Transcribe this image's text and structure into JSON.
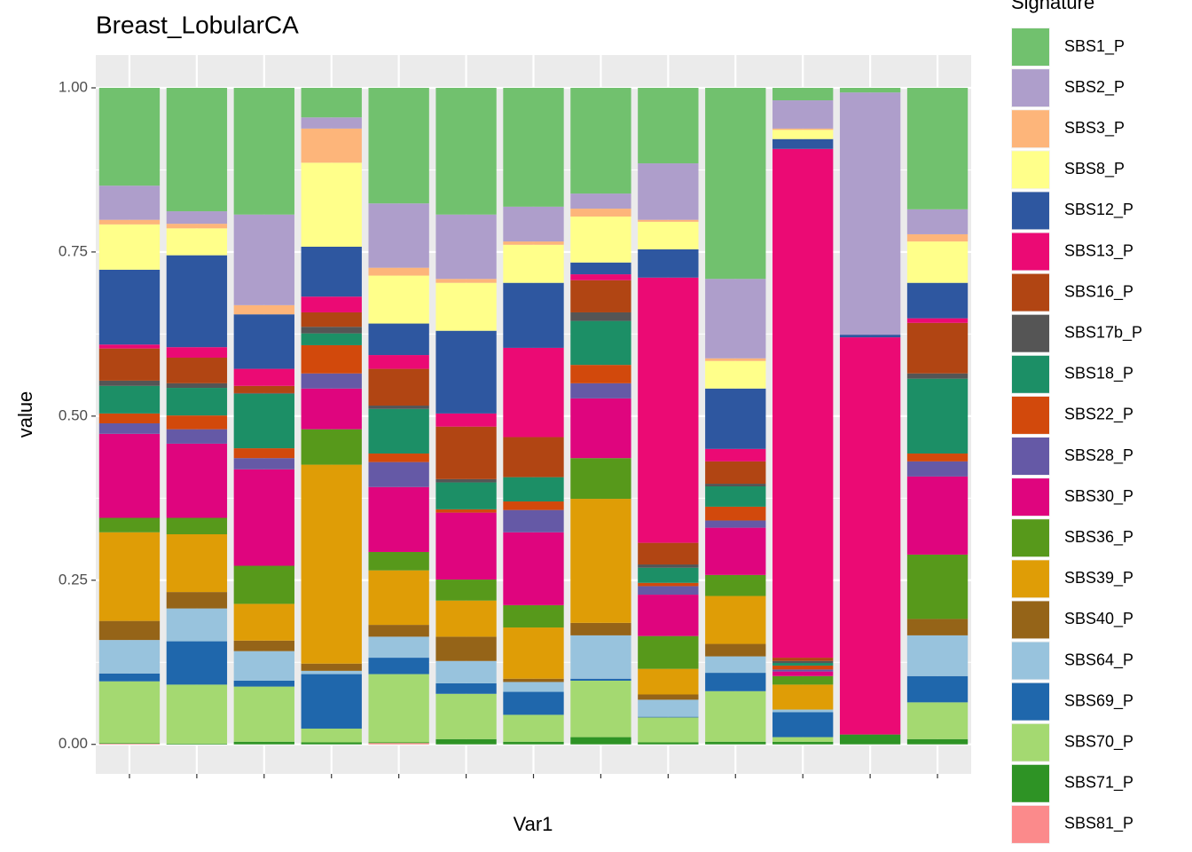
{
  "chart_data": {
    "type": "stacked_bar",
    "title": "Breast_LobularCA",
    "x_label": "Var1",
    "y_label": "value",
    "legend_title": "Signature",
    "legend_position": "right",
    "grid": true,
    "categories": [
      null,
      null,
      null,
      null,
      null,
      null,
      null,
      null,
      null,
      null,
      null,
      null,
      null
    ],
    "ylim": [
      -0.045,
      1.05
    ],
    "yticks": [
      {
        "value": 0,
        "label": "0.00"
      },
      {
        "value": 0.25,
        "label": "0.25"
      },
      {
        "value": 0.5,
        "label": "0.50"
      },
      {
        "value": 0.75,
        "label": "0.75"
      },
      {
        "value": 1,
        "label": "1.00"
      }
    ],
    "series": [
      {
        "name": "SBS1_P",
        "color": "#71C16E",
        "values": [
          0.149,
          0.188,
          0.193,
          0.045,
          0.176,
          0.193,
          0.181,
          0.161,
          0.115,
          0.291,
          0.019,
          0.007,
          0.185
        ]
      },
      {
        "name": "SBS2_P",
        "color": "#AE9ECB",
        "values": [
          0.052,
          0.019,
          0.138,
          0.017,
          0.098,
          0.098,
          0.053,
          0.023,
          0.086,
          0.121,
          0.043,
          0.369,
          0.038
        ]
      },
      {
        "name": "SBS3_P",
        "color": "#FDB57A",
        "values": [
          0.007,
          0.007,
          0.014,
          0.052,
          0.012,
          0.006,
          0.005,
          0.012,
          0.003,
          0.004,
          0.002,
          0,
          0.011
        ]
      },
      {
        "name": "SBS8_P",
        "color": "#FFFF8A",
        "values": [
          0.069,
          0.041,
          0,
          0.128,
          0.073,
          0.073,
          0.058,
          0.07,
          0.042,
          0.042,
          0.014,
          0,
          0.063
        ]
      },
      {
        "name": "SBS12_P",
        "color": "#2E57A0",
        "values": [
          0.114,
          0.14,
          0.083,
          0.076,
          0.048,
          0.126,
          0.099,
          0.018,
          0.043,
          0.092,
          0.015,
          0.004,
          0.054
        ]
      },
      {
        "name": "SBS13_P",
        "color": "#EB0A74",
        "values": [
          0.006,
          0.016,
          0.026,
          0.024,
          0.021,
          0.02,
          0.136,
          0.009,
          0.404,
          0.019,
          0.775,
          0.605,
          0.007
        ]
      },
      {
        "name": "SBS16_P",
        "color": "#B14513",
        "values": [
          0.049,
          0.039,
          0.011,
          0.022,
          0.056,
          0.08,
          0.061,
          0.049,
          0.033,
          0.034,
          0.005,
          0,
          0.077
        ]
      },
      {
        "name": "SBS17b_P",
        "color": "#555555",
        "values": [
          0.008,
          0.007,
          0.001,
          0.01,
          0.005,
          0.005,
          0,
          0.013,
          0.005,
          0.004,
          0.003,
          0,
          0.008
        ]
      },
      {
        "name": "SBS18_P",
        "color": "#1C8F66",
        "values": [
          0.042,
          0.042,
          0.083,
          0.018,
          0.068,
          0.041,
          0.037,
          0.067,
          0.023,
          0.031,
          0.004,
          0,
          0.114
        ]
      },
      {
        "name": "SBS22_P",
        "color": "#D2490C",
        "values": [
          0.015,
          0.021,
          0.015,
          0.043,
          0.013,
          0.005,
          0.013,
          0.028,
          0.005,
          0.021,
          0.006,
          0,
          0.012
        ]
      },
      {
        "name": "SBS28_P",
        "color": "#6559A6",
        "values": [
          0.016,
          0.022,
          0.017,
          0.023,
          0.038,
          0,
          0.034,
          0.023,
          0.013,
          0.011,
          0.003,
          0,
          0.023
        ]
      },
      {
        "name": "SBS30_P",
        "color": "#DF057E",
        "values": [
          0.128,
          0.113,
          0.147,
          0.062,
          0.099,
          0.102,
          0.111,
          0.091,
          0.063,
          0.072,
          0.007,
          0,
          0.119
        ]
      },
      {
        "name": "SBS36_P",
        "color": "#57991B",
        "values": [
          0.022,
          0.025,
          0.058,
          0.054,
          0.028,
          0.032,
          0.034,
          0.062,
          0.05,
          0.032,
          0.013,
          0,
          0.098
        ]
      },
      {
        "name": "SBS39_P",
        "color": "#DF9D06",
        "values": [
          0.135,
          0.088,
          0.056,
          0.303,
          0.083,
          0.055,
          0.078,
          0.189,
          0.039,
          0.073,
          0.038,
          0,
          0
        ]
      },
      {
        "name": "SBS40_P",
        "color": "#956418",
        "values": [
          0.029,
          0.025,
          0.016,
          0.011,
          0.018,
          0.037,
          0.005,
          0.019,
          0.008,
          0.019,
          0,
          0,
          0.025
        ]
      },
      {
        "name": "SBS64_P",
        "color": "#98C3DD",
        "values": [
          0.051,
          0.05,
          0.045,
          0.005,
          0.032,
          0.034,
          0.015,
          0.066,
          0.026,
          0.025,
          0.004,
          0,
          0.062
        ]
      },
      {
        "name": "SBS69_P",
        "color": "#1F67AC",
        "values": [
          0.012,
          0.066,
          0.009,
          0.083,
          0.025,
          0.016,
          0.035,
          0.003,
          0.001,
          0.028,
          0.038,
          0,
          0.04
        ]
      },
      {
        "name": "SBS70_P",
        "color": "#A4D971",
        "values": [
          0.094,
          0.09,
          0.084,
          0.021,
          0.104,
          0.069,
          0.041,
          0.086,
          0.038,
          0.077,
          0.007,
          0,
          0.056
        ]
      },
      {
        "name": "SBS71_P",
        "color": "#2E9325",
        "values": [
          0.001,
          0.001,
          0.004,
          0.003,
          0.001,
          0.008,
          0.004,
          0.011,
          0.003,
          0.004,
          0.004,
          0.015,
          0.008
        ]
      },
      {
        "name": "SBS81_P",
        "color": "#FB8A8B",
        "values": [
          0.001,
          0,
          0,
          0,
          0.002,
          0,
          0,
          0,
          0,
          0,
          0,
          0,
          0
        ]
      }
    ]
  }
}
